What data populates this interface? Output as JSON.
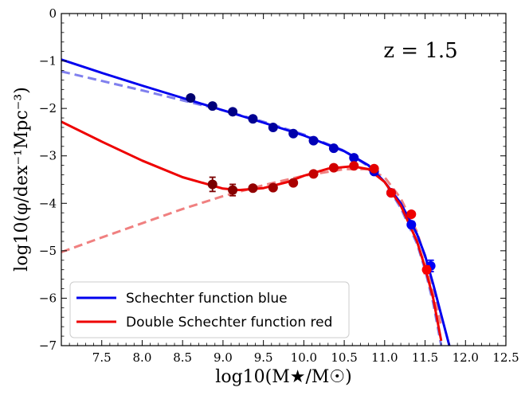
{
  "chart_data": {
    "type": "line",
    "annotation": "z = 1.5",
    "xlabel": "log10(M★/M☉)",
    "ylabel": "log10(φ/dex⁻¹Mpc⁻³)",
    "xlim": [
      7.0,
      12.5
    ],
    "ylim": [
      -7,
      0
    ],
    "xticks": [
      7.5,
      8.0,
      8.5,
      9.0,
      9.5,
      10.0,
      10.5,
      11.0,
      11.5,
      12.0,
      12.5
    ],
    "xtick_labels": [
      "7.5",
      "8.0",
      "8.5",
      "9.0",
      "9.5",
      "10.0",
      "10.5",
      "11.0",
      "11.5",
      "12.0",
      "12.5"
    ],
    "yticks": [
      0,
      -1,
      -2,
      -3,
      -4,
      -5,
      -6,
      -7
    ],
    "ytick_labels": [
      "0",
      "−1",
      "−2",
      "−3",
      "−4",
      "−5",
      "−6",
      "−7"
    ],
    "legend": {
      "position": "lower-left",
      "entries": [
        {
          "label": "Schechter function blue",
          "color": "#0000ee"
        },
        {
          "label": "Double Schechter function red",
          "color": "#ee0000"
        }
      ]
    },
    "series": [
      {
        "name": "Schechter function blue",
        "kind": "line",
        "color": "#0000ee",
        "style": "solid",
        "x": [
          7.0,
          7.5,
          8.0,
          8.5,
          9.0,
          9.5,
          10.0,
          10.5,
          10.8,
          11.0,
          11.2,
          11.4,
          11.5,
          11.6,
          11.7,
          11.8
        ],
        "y": [
          -0.97,
          -1.25,
          -1.52,
          -1.78,
          -2.04,
          -2.3,
          -2.57,
          -2.9,
          -3.2,
          -3.55,
          -4.0,
          -4.65,
          -5.1,
          -5.7,
          -6.35,
          -7.0
        ]
      },
      {
        "name": "Double Schechter blue (dashed)",
        "kind": "line",
        "color": "#8080ee",
        "style": "dashed",
        "x": [
          7.0,
          7.5,
          8.0,
          8.5,
          9.0,
          9.5,
          10.0,
          10.5,
          10.8,
          11.0,
          11.2,
          11.4,
          11.5,
          11.6,
          11.7
        ],
        "y": [
          -1.22,
          -1.42,
          -1.62,
          -1.83,
          -2.04,
          -2.28,
          -2.55,
          -2.89,
          -3.22,
          -3.55,
          -4.1,
          -4.85,
          -5.4,
          -6.1,
          -7.0
        ]
      },
      {
        "name": "Double Schechter function red",
        "kind": "line",
        "color": "#ee0000",
        "style": "solid",
        "x": [
          7.0,
          7.5,
          8.0,
          8.5,
          9.0,
          9.2,
          9.5,
          9.8,
          10.0,
          10.3,
          10.6,
          10.8,
          11.0,
          11.2,
          11.4,
          11.5,
          11.6,
          11.7
        ],
        "y": [
          -2.28,
          -2.7,
          -3.1,
          -3.45,
          -3.69,
          -3.72,
          -3.68,
          -3.55,
          -3.42,
          -3.27,
          -3.22,
          -3.28,
          -3.55,
          -4.05,
          -4.8,
          -5.35,
          -6.0,
          -6.9
        ]
      },
      {
        "name": "Schechter red (dashed)",
        "kind": "line",
        "color": "#f08080",
        "style": "dashed",
        "x": [
          7.0,
          7.5,
          8.0,
          8.5,
          9.0,
          9.5,
          10.0,
          10.5,
          10.8,
          11.0,
          11.2,
          11.4,
          11.5,
          11.6,
          11.7
        ],
        "y": [
          -5.03,
          -4.72,
          -4.42,
          -4.12,
          -3.85,
          -3.62,
          -3.42,
          -3.28,
          -3.28,
          -3.45,
          -3.9,
          -4.6,
          -5.15,
          -5.8,
          -6.6
        ]
      },
      {
        "name": "blue data",
        "kind": "points",
        "x": [
          8.6,
          8.87,
          9.12,
          9.37,
          9.62,
          9.87,
          10.12,
          10.37,
          10.62,
          10.87,
          11.08,
          11.33,
          11.57
        ],
        "y": [
          -1.78,
          -1.95,
          -2.07,
          -2.22,
          -2.4,
          -2.53,
          -2.68,
          -2.84,
          -3.04,
          -3.33,
          -3.78,
          -4.45,
          -5.32
        ],
        "err": [
          0,
          0,
          0,
          0,
          0,
          0,
          0,
          0,
          0,
          0,
          0,
          0.07,
          0.12
        ],
        "colors": [
          "#00006e",
          "#00007a",
          "#000086",
          "#000092",
          "#00009e",
          "#0000aa",
          "#0000b6",
          "#0000c2",
          "#0000ce",
          "#0000da",
          "#0000e4",
          "#0000ee",
          "#0000f8"
        ]
      },
      {
        "name": "red data",
        "kind": "points",
        "x": [
          8.87,
          9.12,
          9.37,
          9.62,
          9.87,
          10.12,
          10.37,
          10.62,
          10.87,
          11.08,
          11.33,
          11.52
        ],
        "y": [
          -3.6,
          -3.72,
          -3.68,
          -3.67,
          -3.57,
          -3.38,
          -3.25,
          -3.21,
          -3.27,
          -3.78,
          -4.23,
          -5.4
        ],
        "err": [
          0.15,
          0.12,
          0,
          0,
          0,
          0,
          0,
          0,
          0,
          0,
          0,
          0.08
        ],
        "colors": [
          "#7a0000",
          "#860000",
          "#920000",
          "#9e0000",
          "#aa0000",
          "#c40000",
          "#d00000",
          "#dc0000",
          "#e40000",
          "#ee0000",
          "#ee0000",
          "#f80000"
        ]
      }
    ]
  }
}
